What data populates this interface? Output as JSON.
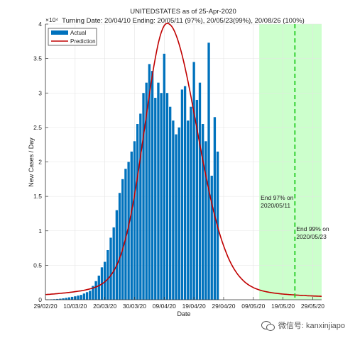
{
  "chart_data": {
    "type": "bar",
    "title": "UNITEDSTATES as of 25-Apr-2020",
    "subtitle": "Turning Date: 20/04/10   Ending: 20/05/11 (97%), 20/05/23(99%), 20/08/26 (100%)",
    "xlabel": "Date",
    "ylabel": "New Cases / Day",
    "y_exponent_label": "×10⁴",
    "ylim": [
      0,
      40000
    ],
    "xlim": [
      "2020-02-29",
      "2020-06-01"
    ],
    "x_ticks": [
      "29/02/20",
      "10/03/20",
      "20/03/20",
      "30/03/20",
      "09/04/20",
      "19/04/20",
      "29/04/20",
      "09/05/20",
      "19/05/20",
      "29/05/20"
    ],
    "y_ticks": [
      "0",
      "0.5",
      "1",
      "1.5",
      "2",
      "2.5",
      "3",
      "3.5",
      "4"
    ],
    "grid": true,
    "legend_position": "top-left",
    "series": [
      {
        "name": "Actual",
        "kind": "bar",
        "color": "#0072BD",
        "start_date": "2020-03-01",
        "values": [
          30,
          60,
          80,
          110,
          150,
          200,
          270,
          350,
          420,
          500,
          600,
          700,
          900,
          1100,
          1300,
          2000,
          2700,
          3500,
          4700,
          5500,
          7200,
          9000,
          10500,
          13000,
          15500,
          17500,
          19000,
          20000,
          21500,
          23000,
          25500,
          27000,
          30000,
          31500,
          34200,
          33200,
          29300,
          31500,
          30000,
          35700,
          30000,
          28000,
          26000,
          24000,
          25000,
          30500,
          31000,
          26000,
          28000,
          34500,
          29000,
          31500,
          25500,
          23000,
          37300,
          18000,
          26500,
          21500
        ]
      },
      {
        "name": "Prediction",
        "kind": "line",
        "color": "#C00000",
        "peak_date": "2020-04-10",
        "peak_value": 35500
      }
    ],
    "shaded_region": {
      "from": "2020-05-11",
      "to": "2020-06-01",
      "color": "#CCFFCC"
    },
    "vertical_line": {
      "date": "2020-05-23",
      "color": "#22CC22",
      "style": "dashed"
    },
    "annotations": [
      {
        "lines": [
          "End 97% on",
          "2020/05/11"
        ],
        "date": "2020-05-11",
        "value": 14500
      },
      {
        "lines": [
          "End 99% on",
          "2020/05/23"
        ],
        "date": "2020-05-23",
        "value": 10000
      }
    ]
  },
  "watermark": {
    "text": "微信号: kanxinjiapo",
    "icon": "wechat-icon"
  }
}
